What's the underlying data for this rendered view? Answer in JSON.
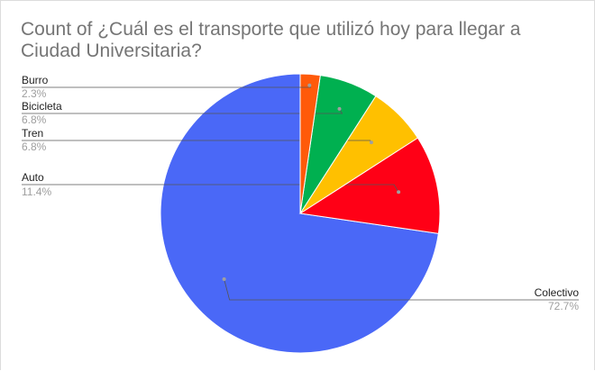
{
  "chart_data": {
    "type": "pie",
    "title": "Count of ¿Cuál es el transporte que utilizó hoy para llegar a Ciudad Universitaria?",
    "slices": [
      {
        "label": "Colectivo",
        "percent_label": "72.7%",
        "value": 72.7,
        "color": "#4a68f7"
      },
      {
        "label": "Auto",
        "percent_label": "11.4%",
        "value": 11.4,
        "color": "#ff0016"
      },
      {
        "label": "Tren",
        "percent_label": "6.8%",
        "value": 6.8,
        "color": "#ffc000"
      },
      {
        "label": "Bicicleta",
        "percent_label": "6.8%",
        "value": 6.8,
        "color": "#00b050"
      },
      {
        "label": "Burro",
        "percent_label": "2.3%",
        "value": 2.3,
        "color": "#ff5a0a"
      }
    ],
    "start": "12 o'clock",
    "direction": "counterclockwise"
  }
}
